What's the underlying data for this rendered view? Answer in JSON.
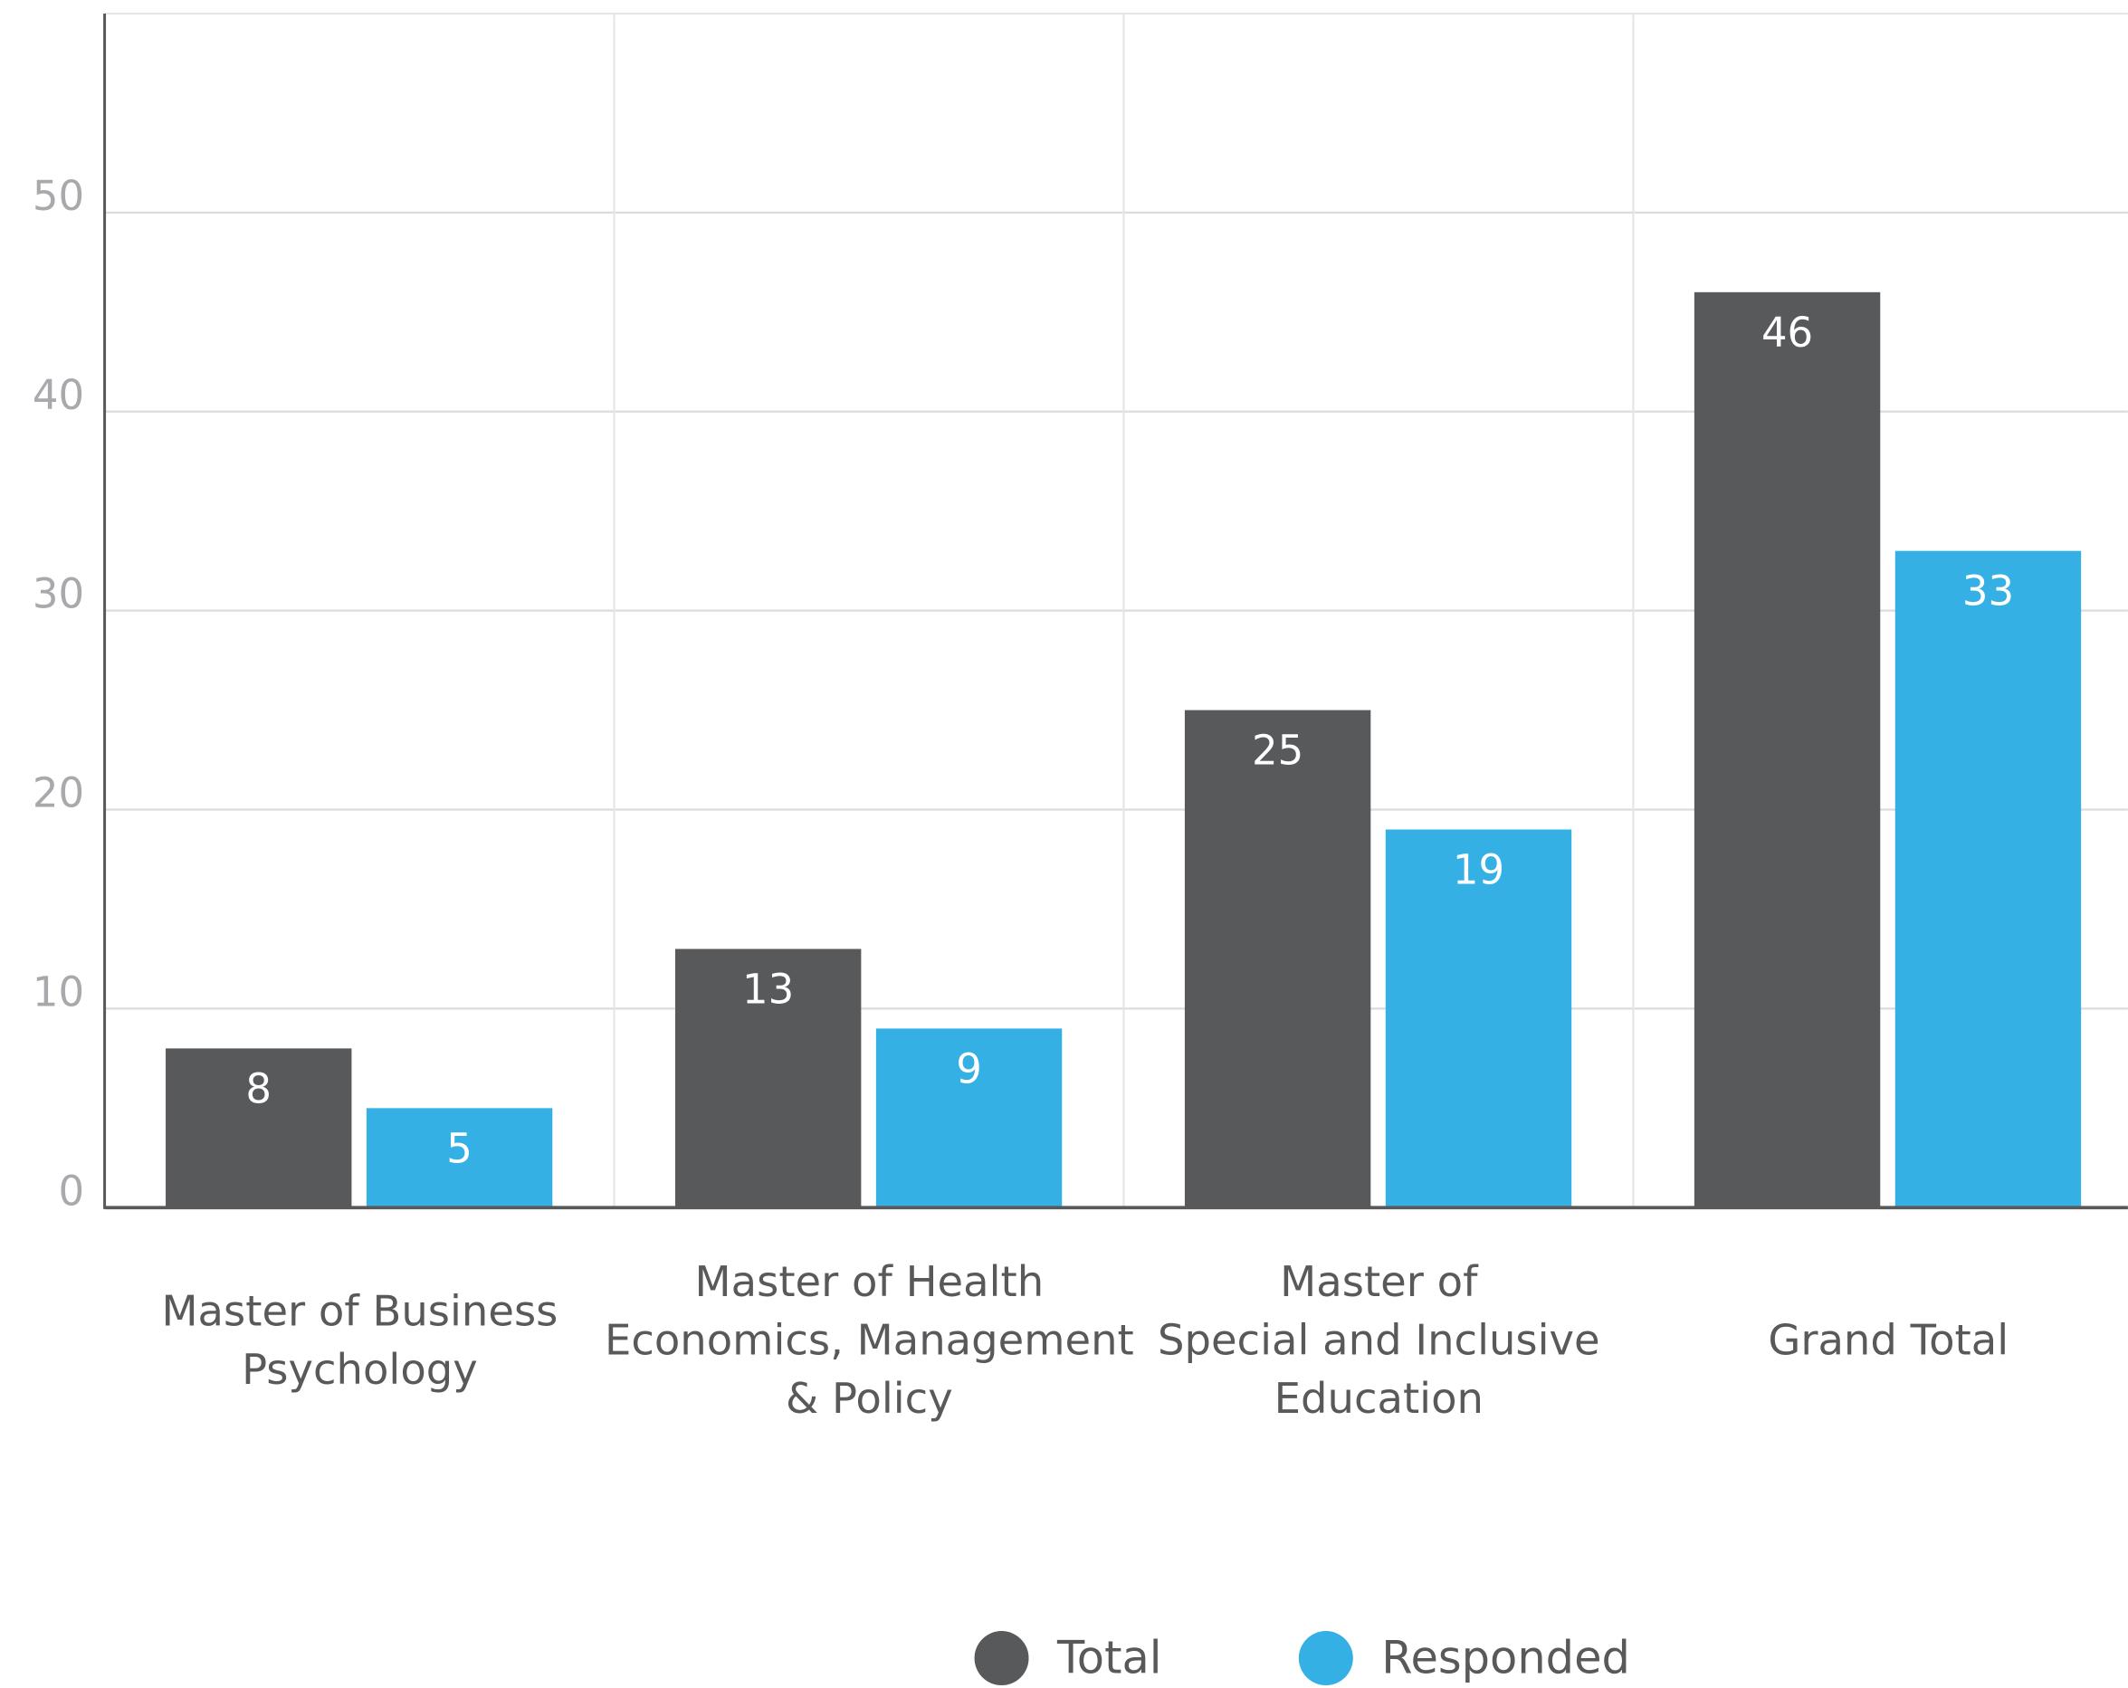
{
  "chart_data": {
    "type": "bar",
    "categories": [
      [
        "Master of Business",
        "Psychology"
      ],
      [
        "Master of Health",
        "Economics, Management",
        "& Policy"
      ],
      [
        "Master of",
        "Special and Inclusive",
        "Education"
      ],
      [
        "Grand Total"
      ]
    ],
    "series": [
      {
        "name": "Total",
        "color": "#58595b",
        "values": [
          8,
          13,
          25,
          46
        ]
      },
      {
        "name": "Responded",
        "color": "#35b0e5",
        "values": [
          5,
          9,
          19,
          33
        ]
      }
    ],
    "ylim": [
      0,
      60
    ],
    "yticks": [
      0,
      10,
      20,
      30,
      40,
      50
    ],
    "grid": true,
    "legend": "bottom"
  }
}
